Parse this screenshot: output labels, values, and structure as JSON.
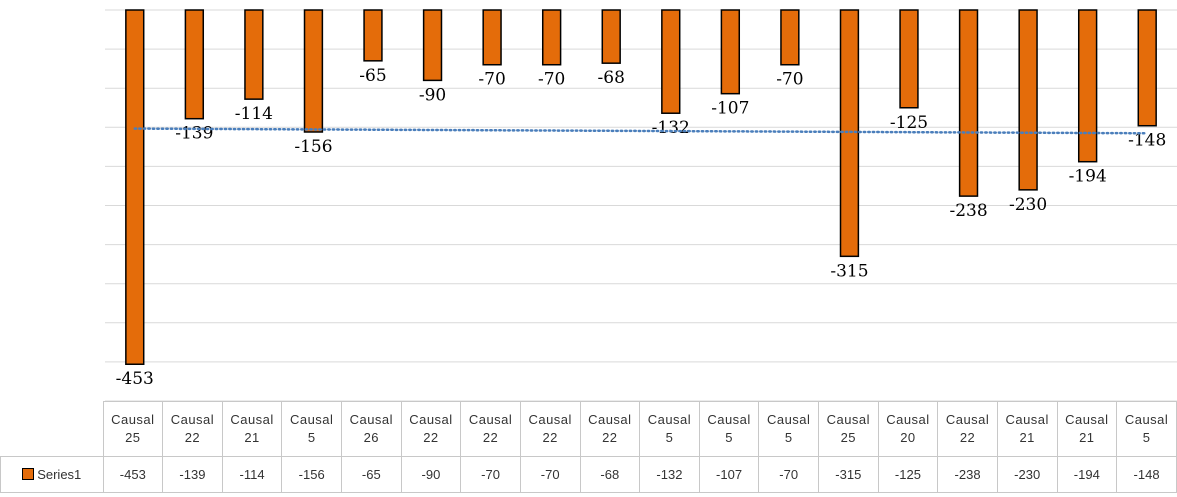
{
  "chart_data": {
    "type": "bar",
    "categories": [
      "Causal 25",
      "Causal 22",
      "Causal 21",
      "Causal 5",
      "Causal 26",
      "Causal 22",
      "Causal 22",
      "Causal 22",
      "Causal 22",
      "Causal 5",
      "Causal 5",
      "Causal 5",
      "Causal 25",
      "Causal 20",
      "Causal 22",
      "Causal 21",
      "Causal 21",
      "Causal 5"
    ],
    "series": [
      {
        "name": "Series1",
        "color": "#e46c0a",
        "values": [
          -453,
          -139,
          -114,
          -156,
          -65,
          -90,
          -70,
          -70,
          -68,
          -132,
          -107,
          -70,
          -315,
          -125,
          -238,
          -230,
          -194,
          -148
        ]
      }
    ],
    "ylim": [
      -500,
      0
    ],
    "yticks": [
      -500,
      -450,
      -400,
      -350,
      -300,
      -250,
      -200,
      -150,
      -100,
      -50,
      0
    ],
    "grid": true,
    "trendline": {
      "type": "linear",
      "color": "#4a7ebb"
    }
  }
}
